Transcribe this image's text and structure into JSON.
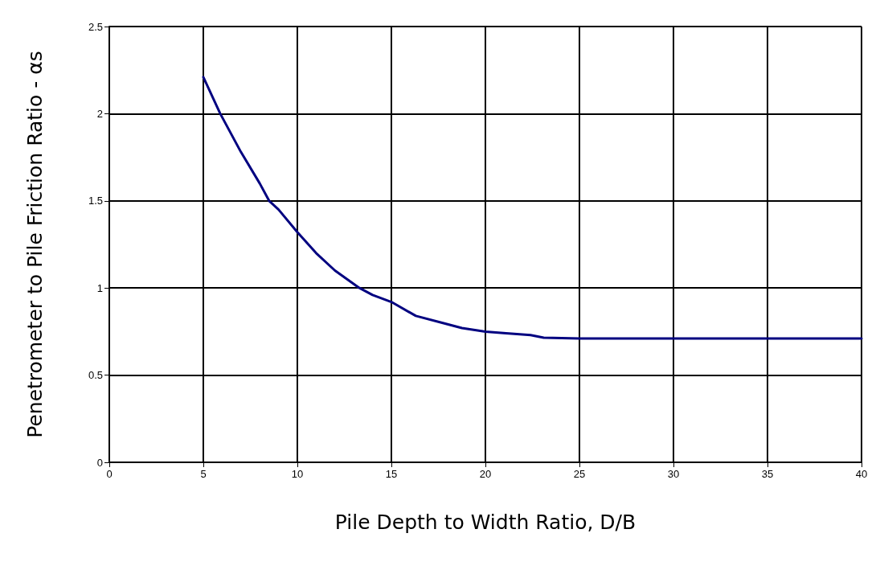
{
  "chart_data": {
    "type": "line",
    "xlabel": "Pile Depth to Width Ratio, D/B",
    "ylabel": "Penetrometer to Pile Friction Ratio - αs",
    "x": [
      5,
      5.9,
      7,
      8,
      8.5,
      9,
      10,
      11,
      12,
      13.3,
      14,
      15,
      16.3,
      17.7,
      18.75,
      20,
      21.1,
      22.4,
      23.1,
      25,
      30,
      35,
      40
    ],
    "series": [
      {
        "color": "#000080",
        "values": [
          2.21,
          2.0,
          1.78,
          1.6,
          1.5,
          1.45,
          1.32,
          1.2,
          1.1,
          1.0,
          0.96,
          0.92,
          0.84,
          0.8,
          0.77,
          0.75,
          0.74,
          0.73,
          0.715,
          0.71,
          0.71,
          0.71,
          0.71
        ]
      }
    ],
    "xlim": [
      0,
      40
    ],
    "xticks": [
      0,
      5,
      10,
      15,
      20,
      25,
      30,
      35,
      40
    ],
    "ylim": [
      0,
      2.5
    ],
    "yticks": [
      0,
      0.5,
      1,
      1.5,
      2,
      2.5
    ],
    "grid": true,
    "marker": "none",
    "line_style": "solid"
  }
}
